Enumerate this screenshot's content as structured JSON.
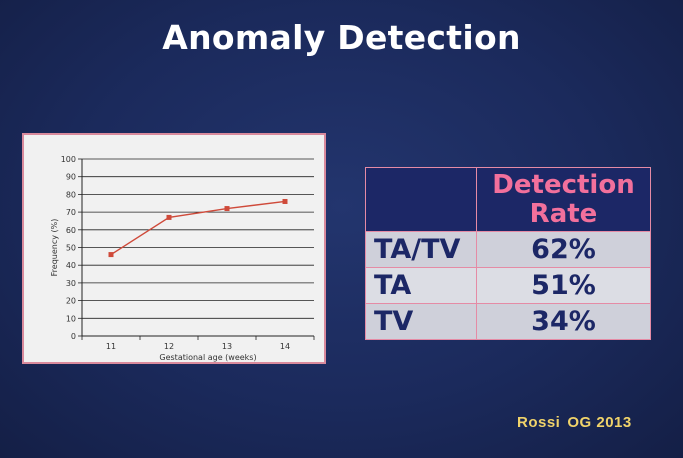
{
  "slide": {
    "title": "Anomaly Detection",
    "citation_author": "Rossi",
    "citation_source": "OG 2013"
  },
  "table": {
    "header": "Detection Rate",
    "rows": [
      {
        "label": "TA/TV",
        "value": "62%"
      },
      {
        "label": "TA",
        "value": "51%"
      },
      {
        "label": "TV",
        "value": "34%"
      }
    ]
  },
  "colors": {
    "line": "#cf4a3a",
    "header_text": "#f2709c",
    "table_text": "#1c2766",
    "citation": "#f0d36a"
  },
  "chart_data": {
    "type": "line",
    "x": [
      "11",
      "12",
      "13",
      "14"
    ],
    "values": [
      46,
      67,
      72,
      76
    ],
    "xlabel": "Gestational age (weeks)",
    "ylabel": "Frequency (%)",
    "ylim": [
      0,
      100
    ],
    "yticks": [
      0,
      10,
      20,
      30,
      40,
      50,
      60,
      70,
      80,
      90,
      100
    ],
    "grid": true
  }
}
